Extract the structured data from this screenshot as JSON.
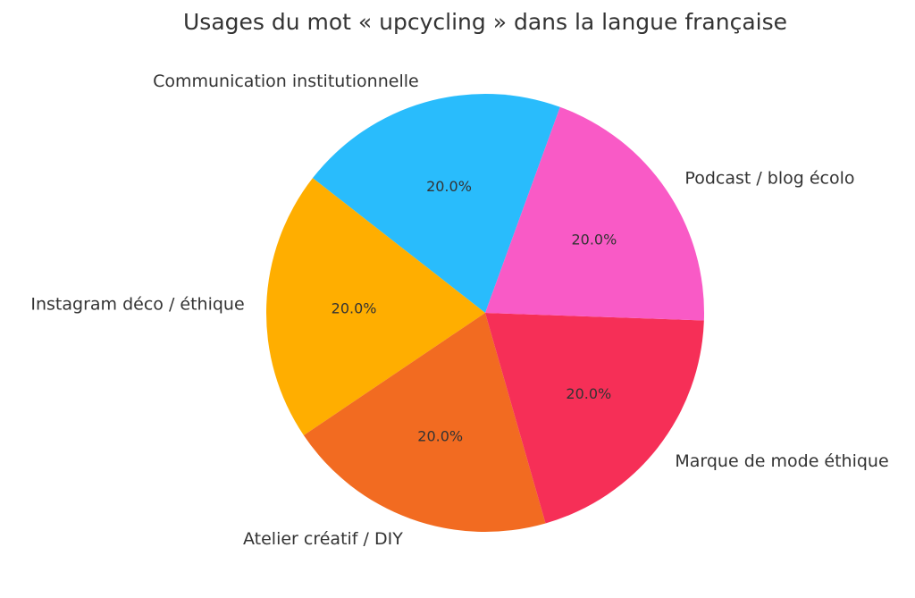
{
  "chart_data": {
    "type": "pie",
    "title": "Usages du mot « upcycling » dans la langue française",
    "slices": [
      {
        "label": "Communication institutionnelle",
        "value": 20.0,
        "pct_label": "20.0%",
        "color": "#29BCFC"
      },
      {
        "label": "Instagram déco / éthique",
        "value": 20.0,
        "pct_label": "20.0%",
        "color": "#FFAE00"
      },
      {
        "label": "Atelier créatif / DIY",
        "value": 20.0,
        "pct_label": "20.0%",
        "color": "#F26B21"
      },
      {
        "label": "Marque de mode éthique",
        "value": 20.0,
        "pct_label": "20.0%",
        "color": "#F62F57"
      },
      {
        "label": "Podcast / blog écolo",
        "value": 20.0,
        "pct_label": "20.0%",
        "color": "#F95AC6"
      }
    ],
    "start_angle_deg": 70,
    "direction": "counterclockwise"
  }
}
